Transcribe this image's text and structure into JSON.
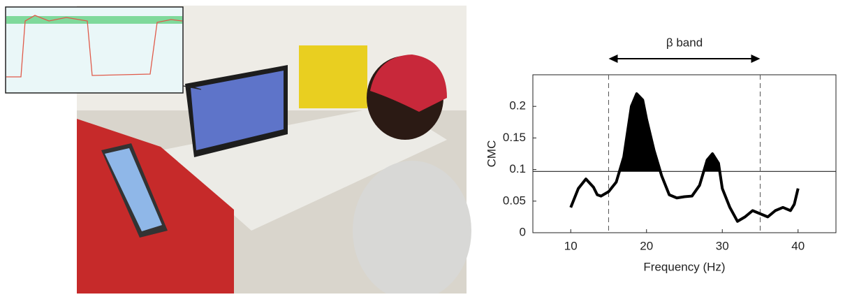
{
  "chart_data": {
    "type": "line",
    "xlabel": "Frequency (Hz)",
    "ylabel": "CMC",
    "x": [
      10,
      11,
      12,
      13,
      13.5,
      14,
      15,
      16,
      17,
      18,
      18.7,
      19.5,
      20,
      21,
      22,
      23,
      24,
      25,
      26,
      27,
      28,
      28.7,
      29.5,
      30,
      31,
      32,
      33,
      34,
      35,
      36,
      37,
      38,
      39,
      39.5,
      40
    ],
    "values": [
      0.04,
      0.07,
      0.085,
      0.072,
      0.06,
      0.058,
      0.065,
      0.08,
      0.12,
      0.2,
      0.22,
      0.21,
      0.18,
      0.13,
      0.09,
      0.06,
      0.055,
      0.057,
      0.058,
      0.075,
      0.115,
      0.125,
      0.11,
      0.07,
      0.04,
      0.018,
      0.025,
      0.035,
      0.03,
      0.025,
      0.035,
      0.04,
      0.035,
      0.045,
      0.07
    ],
    "color": "#000000",
    "threshold": 0.097,
    "band": {
      "label": "β band",
      "range": [
        15,
        35
      ]
    },
    "xlim": [
      5,
      45
    ],
    "xticks": [
      10,
      20,
      30,
      40
    ],
    "ylim": [
      0,
      0.25
    ],
    "yticks": [
      0,
      0.05,
      0.1,
      0.15,
      0.2
    ]
  }
}
